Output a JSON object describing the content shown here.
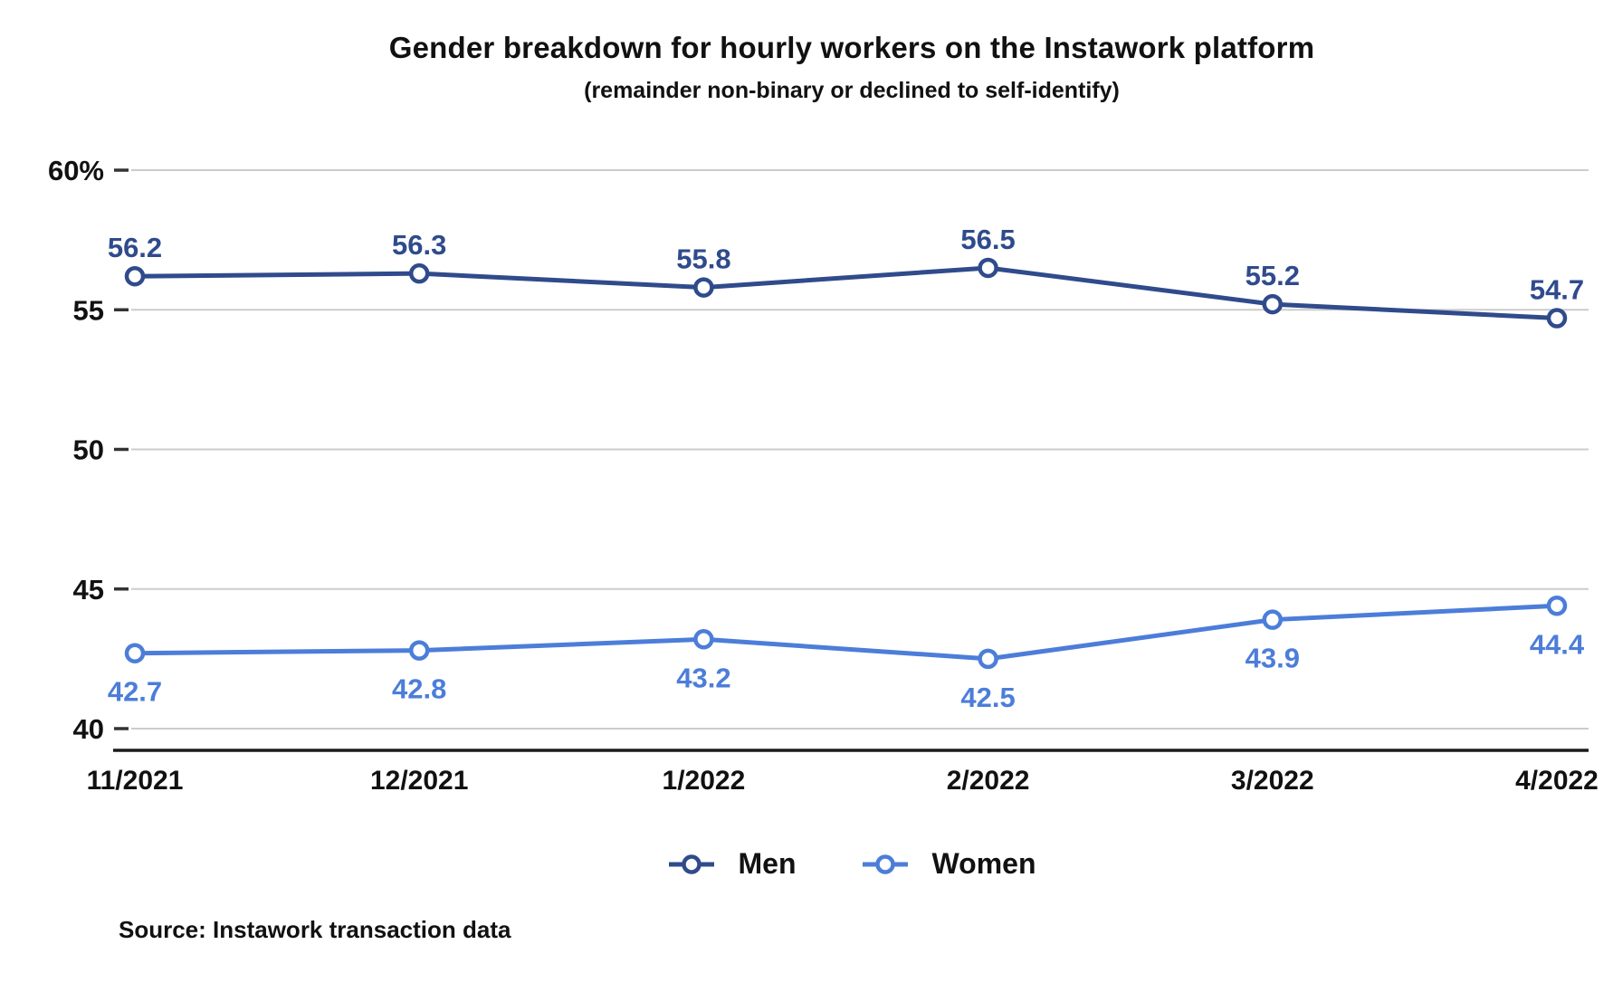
{
  "header": {
    "title": "Gender breakdown for hourly workers on the Instawork platform",
    "subtitle": "(remainder non-binary or declined to self-identify)"
  },
  "source": "Source: Instawork transaction data",
  "colors": {
    "men": "#2F4B8C",
    "women": "#4C7DD9",
    "gridline": "#CCCCCC",
    "tick": "#333333",
    "axis": "#1A1A1A",
    "text": "#111111"
  },
  "legend": {
    "items": [
      {
        "label": "Men",
        "color": "#2F4B8C"
      },
      {
        "label": "Women",
        "color": "#4C7DD9"
      }
    ]
  },
  "chart_data": {
    "type": "line",
    "title": "Gender breakdown for hourly workers on the Instawork platform",
    "subtitle": "(remainder non-binary or declined to self-identify)",
    "categories": [
      "11/2021",
      "12/2021",
      "1/2022",
      "2/2022",
      "3/2022",
      "4/2022"
    ],
    "series": [
      {
        "name": "Men",
        "color": "#2F4B8C",
        "values": [
          56.2,
          56.3,
          55.8,
          56.5,
          55.2,
          54.7
        ],
        "label_position": "above"
      },
      {
        "name": "Women",
        "color": "#4C7DD9",
        "values": [
          42.7,
          42.8,
          43.2,
          42.5,
          43.9,
          44.4
        ],
        "label_position": "below"
      }
    ],
    "ylabel": "",
    "xlabel": "",
    "ylim": [
      40,
      60
    ],
    "y_ticks": [
      40,
      45,
      50,
      55,
      60
    ],
    "y_tick_labels": [
      "40",
      "45",
      "50",
      "55",
      "60%"
    ],
    "grid": true,
    "marker": "open-circle",
    "legend_position": "bottom"
  }
}
